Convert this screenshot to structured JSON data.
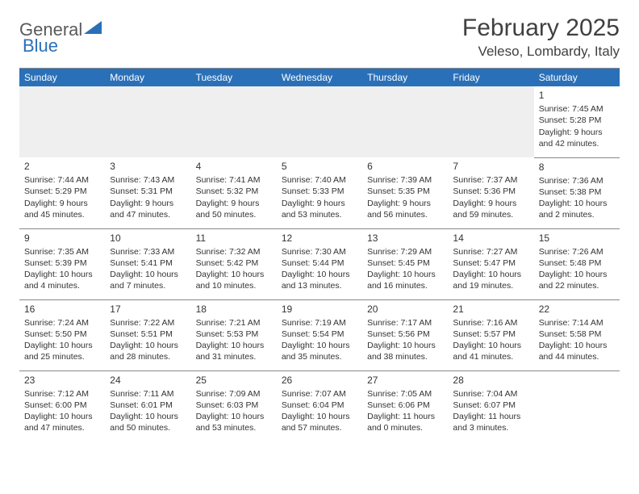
{
  "header": {
    "logo_left": "General",
    "logo_right": "Blue",
    "month_title": "February 2025",
    "location": "Veleso, Lombardy, Italy"
  },
  "colors": {
    "header_bg": "#2a70b8",
    "header_fg": "#ffffff",
    "empty_bg": "#efefef",
    "border": "#888888",
    "text": "#333333",
    "logo_gray": "#5a5a5a",
    "logo_blue": "#2a70b8"
  },
  "day_names": [
    "Sunday",
    "Monday",
    "Tuesday",
    "Wednesday",
    "Thursday",
    "Friday",
    "Saturday"
  ],
  "weeks": [
    [
      null,
      null,
      null,
      null,
      null,
      null,
      {
        "n": "1",
        "sr": "7:45 AM",
        "ss": "5:28 PM",
        "dl": "9 hours and 42 minutes."
      }
    ],
    [
      {
        "n": "2",
        "sr": "7:44 AM",
        "ss": "5:29 PM",
        "dl": "9 hours and 45 minutes."
      },
      {
        "n": "3",
        "sr": "7:43 AM",
        "ss": "5:31 PM",
        "dl": "9 hours and 47 minutes."
      },
      {
        "n": "4",
        "sr": "7:41 AM",
        "ss": "5:32 PM",
        "dl": "9 hours and 50 minutes."
      },
      {
        "n": "5",
        "sr": "7:40 AM",
        "ss": "5:33 PM",
        "dl": "9 hours and 53 minutes."
      },
      {
        "n": "6",
        "sr": "7:39 AM",
        "ss": "5:35 PM",
        "dl": "9 hours and 56 minutes."
      },
      {
        "n": "7",
        "sr": "7:37 AM",
        "ss": "5:36 PM",
        "dl": "9 hours and 59 minutes."
      },
      {
        "n": "8",
        "sr": "7:36 AM",
        "ss": "5:38 PM",
        "dl": "10 hours and 2 minutes."
      }
    ],
    [
      {
        "n": "9",
        "sr": "7:35 AM",
        "ss": "5:39 PM",
        "dl": "10 hours and 4 minutes."
      },
      {
        "n": "10",
        "sr": "7:33 AM",
        "ss": "5:41 PM",
        "dl": "10 hours and 7 minutes."
      },
      {
        "n": "11",
        "sr": "7:32 AM",
        "ss": "5:42 PM",
        "dl": "10 hours and 10 minutes."
      },
      {
        "n": "12",
        "sr": "7:30 AM",
        "ss": "5:44 PM",
        "dl": "10 hours and 13 minutes."
      },
      {
        "n": "13",
        "sr": "7:29 AM",
        "ss": "5:45 PM",
        "dl": "10 hours and 16 minutes."
      },
      {
        "n": "14",
        "sr": "7:27 AM",
        "ss": "5:47 PM",
        "dl": "10 hours and 19 minutes."
      },
      {
        "n": "15",
        "sr": "7:26 AM",
        "ss": "5:48 PM",
        "dl": "10 hours and 22 minutes."
      }
    ],
    [
      {
        "n": "16",
        "sr": "7:24 AM",
        "ss": "5:50 PM",
        "dl": "10 hours and 25 minutes."
      },
      {
        "n": "17",
        "sr": "7:22 AM",
        "ss": "5:51 PM",
        "dl": "10 hours and 28 minutes."
      },
      {
        "n": "18",
        "sr": "7:21 AM",
        "ss": "5:53 PM",
        "dl": "10 hours and 31 minutes."
      },
      {
        "n": "19",
        "sr": "7:19 AM",
        "ss": "5:54 PM",
        "dl": "10 hours and 35 minutes."
      },
      {
        "n": "20",
        "sr": "7:17 AM",
        "ss": "5:56 PM",
        "dl": "10 hours and 38 minutes."
      },
      {
        "n": "21",
        "sr": "7:16 AM",
        "ss": "5:57 PM",
        "dl": "10 hours and 41 minutes."
      },
      {
        "n": "22",
        "sr": "7:14 AM",
        "ss": "5:58 PM",
        "dl": "10 hours and 44 minutes."
      }
    ],
    [
      {
        "n": "23",
        "sr": "7:12 AM",
        "ss": "6:00 PM",
        "dl": "10 hours and 47 minutes."
      },
      {
        "n": "24",
        "sr": "7:11 AM",
        "ss": "6:01 PM",
        "dl": "10 hours and 50 minutes."
      },
      {
        "n": "25",
        "sr": "7:09 AM",
        "ss": "6:03 PM",
        "dl": "10 hours and 53 minutes."
      },
      {
        "n": "26",
        "sr": "7:07 AM",
        "ss": "6:04 PM",
        "dl": "10 hours and 57 minutes."
      },
      {
        "n": "27",
        "sr": "7:05 AM",
        "ss": "6:06 PM",
        "dl": "11 hours and 0 minutes."
      },
      {
        "n": "28",
        "sr": "7:04 AM",
        "ss": "6:07 PM",
        "dl": "11 hours and 3 minutes."
      },
      null
    ]
  ],
  "labels": {
    "sunrise": "Sunrise:",
    "sunset": "Sunset:",
    "daylight": "Daylight:"
  }
}
